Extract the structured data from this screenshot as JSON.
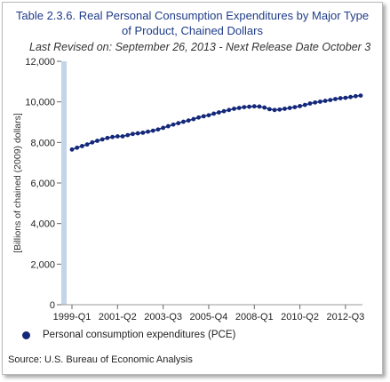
{
  "title": "Table 2.3.6. Real Personal Consumption Expenditures by Major Type\nof Product, Chained Dollars",
  "subtitle": "Last Revised on: September 26, 2013 - Next Release Date October 3",
  "source": "Source: U.S. Bureau of Economic Analysis",
  "colors": {
    "series": "#14287a",
    "axis_band": "#c5d5e8",
    "title": "#1f3c88"
  },
  "chart_data": {
    "type": "line",
    "ylabel": "[Billions of chained (2009) dollars]",
    "xlabel": "",
    "ylim": [
      0,
      12000
    ],
    "yticks": [
      0,
      2000,
      4000,
      6000,
      8000,
      10000,
      12000
    ],
    "ytick_labels": [
      "0",
      "2,000",
      "4,000",
      "6,000",
      "8,000",
      "10,000",
      "12,000"
    ],
    "xtick_labels": [
      "1999-Q1",
      "2001-Q2",
      "2003-Q3",
      "2005-Q4",
      "2008-Q1",
      "2010-Q2",
      "2012-Q3"
    ],
    "xtick_index": [
      0,
      9,
      18,
      27,
      36,
      45,
      54
    ],
    "grid": false,
    "legend_position": "bottom",
    "series": [
      {
        "name": "Personal consumption expenditures (PCE)",
        "x": [
          "1999-Q1",
          "1999-Q2",
          "1999-Q3",
          "1999-Q4",
          "2000-Q1",
          "2000-Q2",
          "2000-Q3",
          "2000-Q4",
          "2001-Q1",
          "2001-Q2",
          "2001-Q3",
          "2001-Q4",
          "2002-Q1",
          "2002-Q2",
          "2002-Q3",
          "2002-Q4",
          "2003-Q1",
          "2003-Q2",
          "2003-Q3",
          "2003-Q4",
          "2004-Q1",
          "2004-Q2",
          "2004-Q3",
          "2004-Q4",
          "2005-Q1",
          "2005-Q2",
          "2005-Q3",
          "2005-Q4",
          "2006-Q1",
          "2006-Q2",
          "2006-Q3",
          "2006-Q4",
          "2007-Q1",
          "2007-Q2",
          "2007-Q3",
          "2007-Q4",
          "2008-Q1",
          "2008-Q2",
          "2008-Q3",
          "2008-Q4",
          "2009-Q1",
          "2009-Q2",
          "2009-Q3",
          "2009-Q4",
          "2010-Q1",
          "2010-Q2",
          "2010-Q3",
          "2010-Q4",
          "2011-Q1",
          "2011-Q2",
          "2011-Q3",
          "2011-Q4",
          "2012-Q1",
          "2012-Q2",
          "2012-Q3",
          "2012-Q4",
          "2013-Q1",
          "2013-Q2"
        ],
        "values": [
          7650,
          7740,
          7820,
          7900,
          8000,
          8080,
          8150,
          8220,
          8270,
          8300,
          8300,
          8360,
          8420,
          8450,
          8480,
          8530,
          8580,
          8640,
          8720,
          8800,
          8880,
          8950,
          9020,
          9080,
          9150,
          9230,
          9290,
          9340,
          9420,
          9480,
          9540,
          9600,
          9660,
          9700,
          9740,
          9760,
          9780,
          9770,
          9720,
          9640,
          9600,
          9620,
          9660,
          9700,
          9740,
          9790,
          9850,
          9920,
          9970,
          10010,
          10050,
          10090,
          10140,
          10180,
          10200,
          10240,
          10280,
          10310
        ]
      }
    ]
  }
}
